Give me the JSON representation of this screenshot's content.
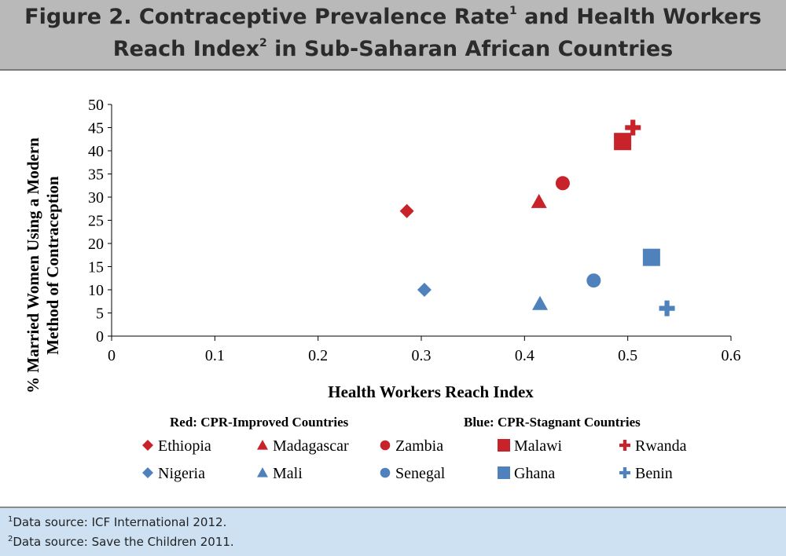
{
  "header": {
    "title_part1": "Figure 2. Contraceptive Prevalence Rate",
    "title_sup1": "1",
    "title_part2": " and Health Workers",
    "title_part3": "Reach Index",
    "title_sup2": "2",
    "title_part4": " in Sub-Saharan African Countries"
  },
  "chart_data": {
    "type": "scatter",
    "xlabel": "Health Workers Reach Index",
    "ylabel_line1": "% Married Women Using a Modern",
    "ylabel_line2": "Method of Contraception",
    "xlim": [
      0,
      0.6
    ],
    "ylim": [
      0,
      50
    ],
    "x_ticks": [
      0,
      0.1,
      0.2,
      0.3,
      0.4,
      0.5,
      0.6
    ],
    "x_tick_labels": [
      "0",
      "0.1",
      "0.2",
      "0.3",
      "0.4",
      "0.5",
      "0.6"
    ],
    "y_ticks": [
      0,
      5,
      10,
      15,
      20,
      25,
      30,
      35,
      40,
      45,
      50
    ],
    "y_tick_labels": [
      "0",
      "5",
      "10",
      "15",
      "20",
      "25",
      "30",
      "35",
      "40",
      "45",
      "50"
    ],
    "grid": false,
    "legend_placement": "bottom",
    "legend_group_labels": [
      "Red: CPR-Improved Countries",
      "Blue: CPR-Stagnant Countries"
    ],
    "colors": {
      "improved": "#c8232a",
      "stagnant": "#4f81bd"
    },
    "series": [
      {
        "name": "Ethiopia",
        "group": "improved",
        "marker": "diamond",
        "x": 0.286,
        "y": 27
      },
      {
        "name": "Madagascar",
        "group": "improved",
        "marker": "triangle",
        "x": 0.414,
        "y": 29
      },
      {
        "name": "Zambia",
        "group": "improved",
        "marker": "circle",
        "x": 0.437,
        "y": 33
      },
      {
        "name": "Malawi",
        "group": "improved",
        "marker": "square",
        "x": 0.495,
        "y": 42
      },
      {
        "name": "Rwanda",
        "group": "improved",
        "marker": "plus",
        "x": 0.505,
        "y": 45
      },
      {
        "name": "Nigeria",
        "group": "stagnant",
        "marker": "diamond",
        "x": 0.303,
        "y": 10
      },
      {
        "name": "Mali",
        "group": "stagnant",
        "marker": "triangle",
        "x": 0.415,
        "y": 7
      },
      {
        "name": "Senegal",
        "group": "stagnant",
        "marker": "circle",
        "x": 0.467,
        "y": 12
      },
      {
        "name": "Ghana",
        "group": "stagnant",
        "marker": "square",
        "x": 0.523,
        "y": 17
      },
      {
        "name": "Benin",
        "group": "stagnant",
        "marker": "plus",
        "x": 0.538,
        "y": 6
      }
    ]
  },
  "footer": {
    "note1_sup": "1",
    "note1_text": "Data source: ICF International 2012.",
    "note2_sup": "2",
    "note2_text": "Data source: Save the Children 2011."
  }
}
